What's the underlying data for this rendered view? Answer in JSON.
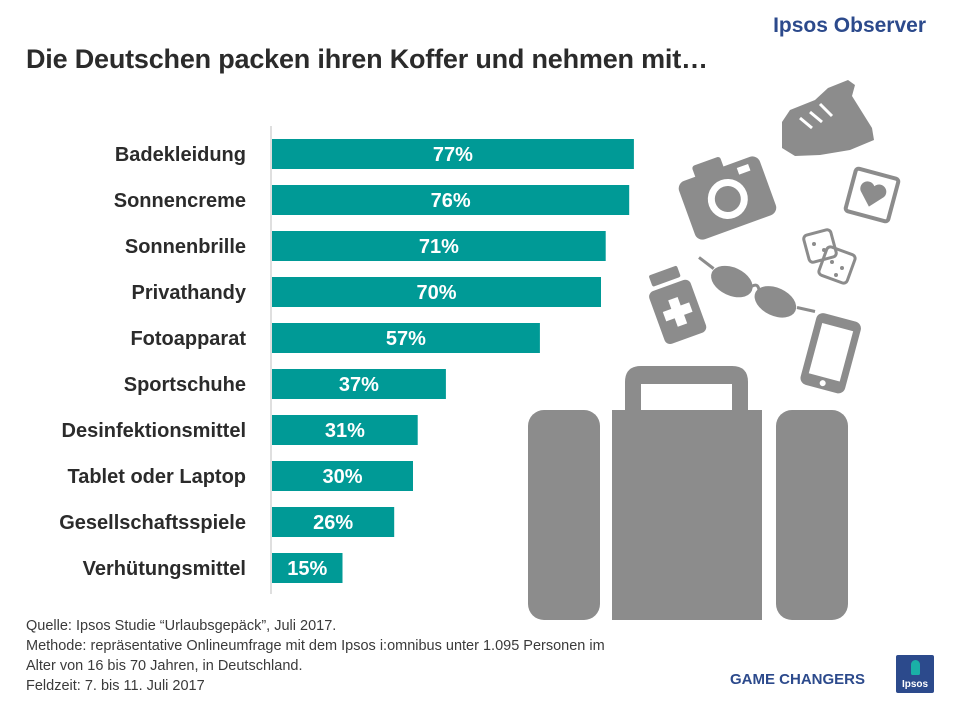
{
  "header": {
    "brand": "Ipsos Observer",
    "title": "Die Deutschen packen ihren Koffer und nehmen mit…"
  },
  "colors": {
    "bar": "#009a96",
    "icon": "#8c8c8c",
    "brand": "#2c4a8c"
  },
  "chart_data": {
    "type": "bar",
    "orientation": "horizontal",
    "title": "Die Deutschen packen ihren Koffer und nehmen mit…",
    "categories": [
      "Badekleidung",
      "Sonnencreme",
      "Sonnenbrille",
      "Privathandy",
      "Fotoapparat",
      "Sportschuhe",
      "Desinfektionsmittel",
      "Tablet oder Laptop",
      "Gesellschaftsspiele",
      "Verhütungsmittel"
    ],
    "values": [
      77,
      76,
      71,
      70,
      57,
      37,
      31,
      30,
      26,
      15
    ],
    "value_labels": [
      "77%",
      "76%",
      "71%",
      "70%",
      "57%",
      "37%",
      "31%",
      "30%",
      "26%",
      "15%"
    ],
    "unit": "%",
    "xlim": [
      0,
      100
    ],
    "grid": false
  },
  "footer": {
    "source": "Quelle:  Ipsos Studie “Urlaubsgepäck”, Juli 2017.",
    "method_line1": "Methode:  repräsentative Onlineumfrage mit dem Ipsos i:omnibus unter 1.095 Personen im",
    "method_line2": "Alter von 16 bis 70 Jahren, in Deutschland.",
    "fieldwork": "Feldzeit: 7. bis 11. Juli 2017"
  },
  "branding": {
    "tagline": "GAME CHANGERS",
    "logo_text": "Ipsos"
  },
  "icons": [
    "sneaker-icon",
    "camera-icon",
    "heart-card-icon",
    "dice-icon",
    "medicine-bottle-icon",
    "sunglasses-icon",
    "smartphone-icon",
    "suitcase-icon"
  ]
}
